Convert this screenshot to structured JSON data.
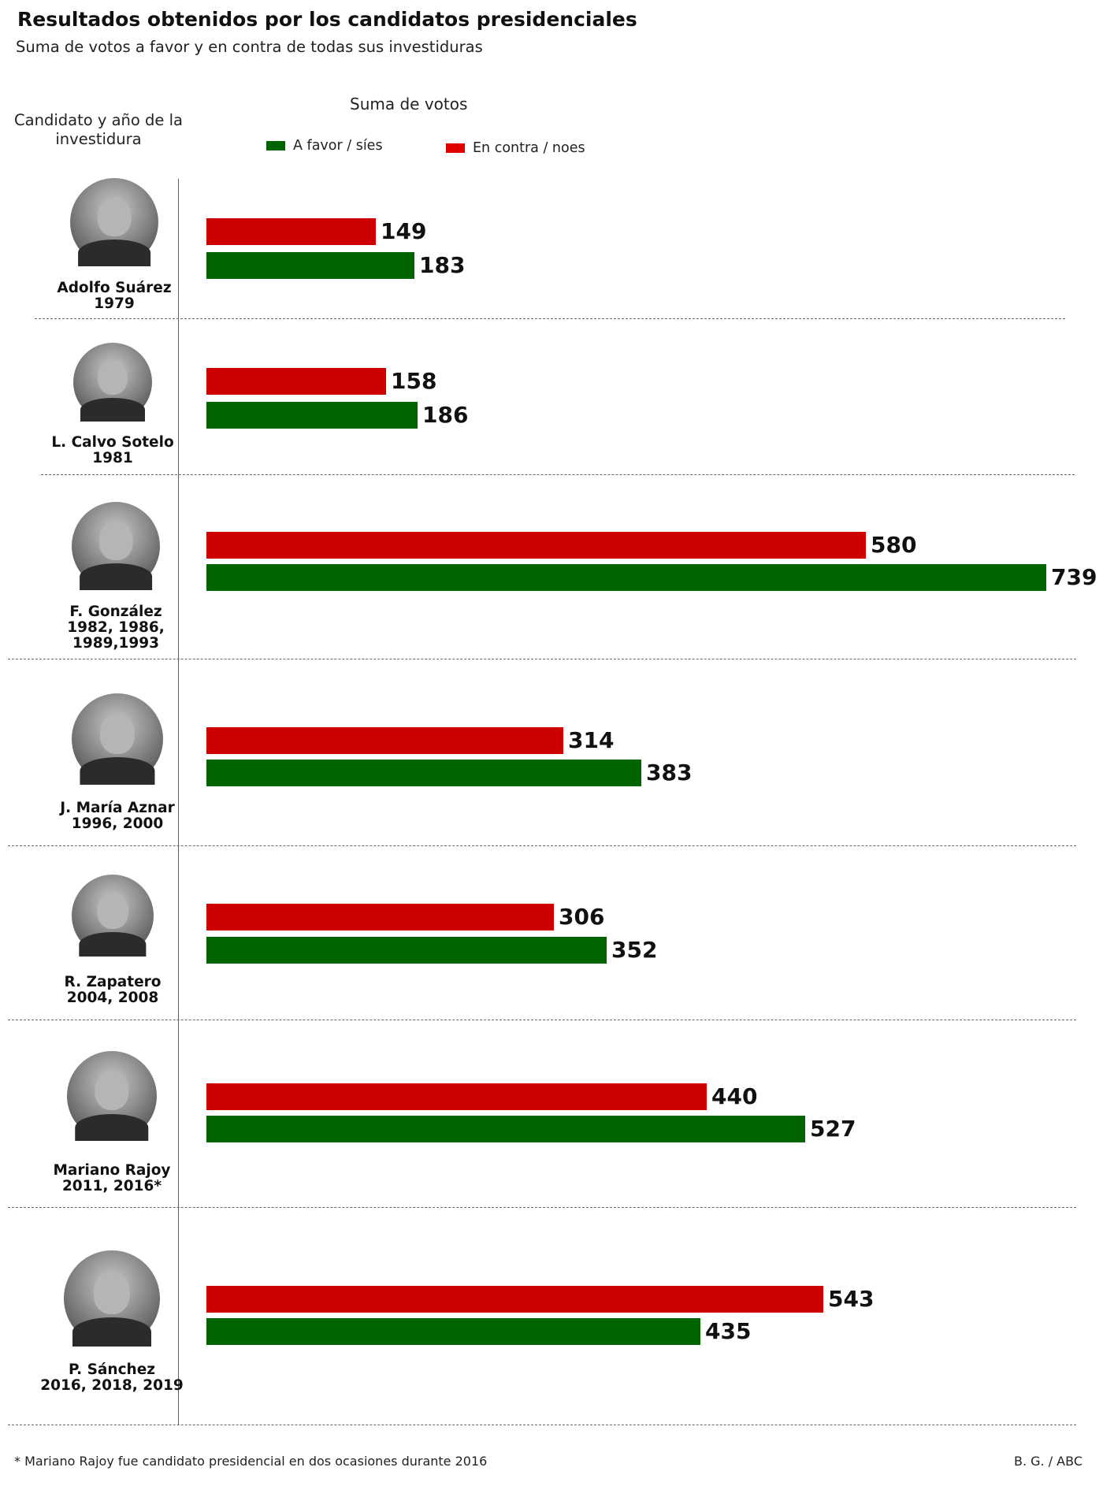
{
  "header": {
    "title": "Resultados obtenidos por los candidatos presidenciales",
    "subtitle": "Suma de votos a favor y en contra de todas sus investiduras"
  },
  "column_header": "Candidato y año de la investidura",
  "colors": {
    "favor": "#006400",
    "contra": "#cc0000",
    "separator": "#666666"
  },
  "chart_data": {
    "type": "bar",
    "orientation": "horizontal",
    "xlabel": "Suma de votos",
    "legend": {
      "placement": "top"
    },
    "categories": [
      {
        "name": "Adolfo Suárez",
        "years": "1979"
      },
      {
        "name": "L. Calvo Sotelo",
        "years": "1981"
      },
      {
        "name": "F. González",
        "years": "1982, 1986, 1989,1993"
      },
      {
        "name": "J. María Aznar",
        "years": "1996, 2000"
      },
      {
        "name": "R. Zapatero",
        "years": "2004, 2008"
      },
      {
        "name": "Mariano Rajoy",
        "years": "2011, 2016*"
      },
      {
        "name": "P. Sánchez",
        "years": "2016, 2018, 2019"
      }
    ],
    "series": [
      {
        "name": "En contra / noes",
        "color": "#cc0000",
        "values": [
          149,
          158,
          580,
          314,
          306,
          440,
          543
        ]
      },
      {
        "name": "A favor / síes",
        "color": "#006400",
        "values": [
          183,
          186,
          739,
          383,
          352,
          527,
          435
        ]
      }
    ],
    "legend_order": [
      "A favor / síes",
      "En contra / noes"
    ],
    "xlim": [
      0,
      739
    ]
  },
  "footnote": "* Mariano Rajoy fue candidato presidencial en dos ocasiones durante 2016",
  "source": "B. G. / ABC"
}
